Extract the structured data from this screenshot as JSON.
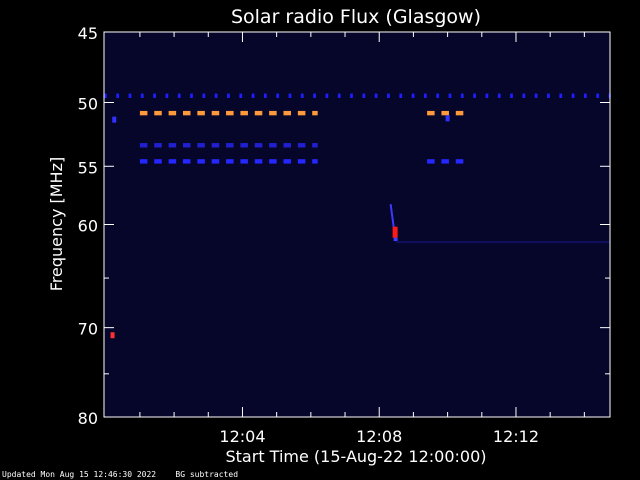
{
  "chart_data": {
    "type": "heatmap",
    "title": "Solar radio Flux (Glasgow)",
    "xlabel": "Start Time (15-Aug-22 12:00:00)",
    "ylabel": "Frequency [MHz]",
    "x_range_minutes": [
      -0.05,
      14.75
    ],
    "y_range_mhz": [
      45,
      80
    ],
    "y_scale": "log",
    "x_ticks": [
      {
        "value": 4,
        "label": "12:04"
      },
      {
        "value": 8,
        "label": "12:08"
      },
      {
        "value": 12,
        "label": "12:12"
      }
    ],
    "y_ticks": [
      {
        "value": 45,
        "label": "45"
      },
      {
        "value": 50,
        "label": "50"
      },
      {
        "value": 55,
        "label": "55"
      },
      {
        "value": 60,
        "label": "60"
      },
      {
        "value": 70,
        "label": "70"
      },
      {
        "value": 80,
        "label": "80"
      }
    ],
    "y_minor_ticks": [
      65,
      75
    ],
    "background_color": "#06062a",
    "colors": {
      "weak": "#1a1aff",
      "medium": "#ff3030",
      "strong": "#ff9a3c",
      "burst": "#ff1a1a"
    },
    "features": [
      {
        "kind": "dashed",
        "freq_mhz": 49.5,
        "t_start": -0.05,
        "t_end": 14.75,
        "color": "#1e1eff",
        "dash_min": 0.08,
        "gap_min": 0.28
      },
      {
        "kind": "dashed",
        "freq_mhz": 50.8,
        "t_start": 1.0,
        "t_end": 6.2,
        "color": "#ff9a3c",
        "dash_min": 0.22,
        "gap_min": 0.2
      },
      {
        "kind": "dashed",
        "freq_mhz": 50.8,
        "t_start": 9.4,
        "t_end": 10.6,
        "color": "#ff9a3c",
        "dash_min": 0.22,
        "gap_min": 0.2
      },
      {
        "kind": "dashed",
        "freq_mhz": 53.3,
        "t_start": 1.0,
        "t_end": 6.2,
        "color": "#2020d0",
        "dash_min": 0.22,
        "gap_min": 0.2
      },
      {
        "kind": "dashed",
        "freq_mhz": 54.6,
        "t_start": 1.0,
        "t_end": 6.2,
        "color": "#2626ff",
        "dash_min": 0.22,
        "gap_min": 0.2
      },
      {
        "kind": "dashed",
        "freq_mhz": 54.6,
        "t_start": 9.4,
        "t_end": 10.6,
        "color": "#2626ff",
        "dash_min": 0.22,
        "gap_min": 0.2
      },
      {
        "kind": "burst",
        "t": 8.45,
        "freq_mhz": [
          58.2,
          61.5
        ],
        "color": "#ff1a1a"
      },
      {
        "kind": "spot",
        "t": 0.2,
        "freq_mhz": 70.8,
        "color": "#ff3030"
      },
      {
        "kind": "spot",
        "t": 0.25,
        "freq_mhz": 51.3,
        "color": "#3030ff"
      },
      {
        "kind": "spot",
        "t": 10.0,
        "freq_mhz": 51.2,
        "color": "#3030ff"
      },
      {
        "kind": "faint_band",
        "freq_mhz": 61.6,
        "t_start": 8.5,
        "t_end": 14.75,
        "color": "#101060"
      }
    ]
  },
  "footer": {
    "updated": "Updated Mon Aug 15 12:46:30 2022",
    "note": "BG subtracted"
  }
}
